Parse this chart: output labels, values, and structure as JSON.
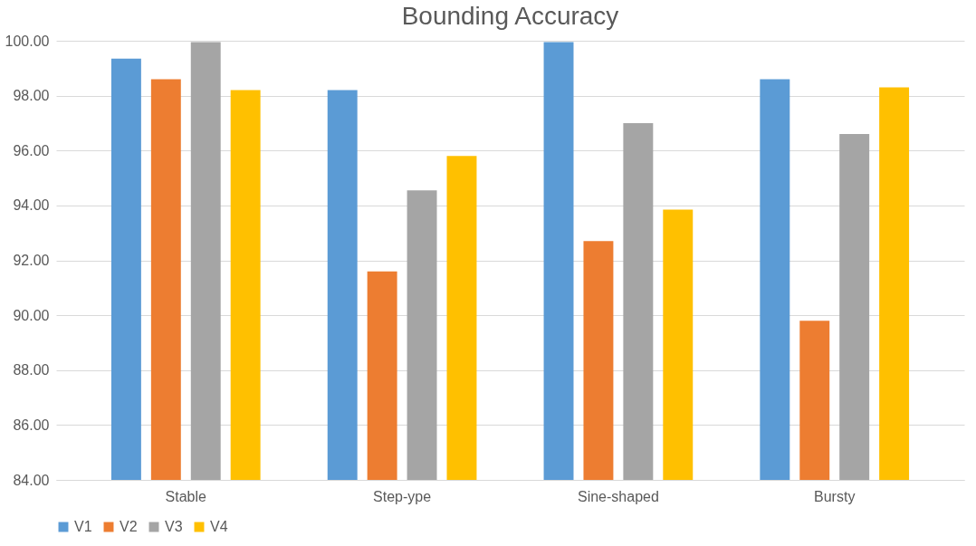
{
  "chart_data": {
    "type": "bar",
    "title": "Bounding Accuracy",
    "categories": [
      "Stable",
      "Step-ype",
      "Sine-shaped",
      "Bursty"
    ],
    "series": [
      {
        "name": "V1",
        "color": "#5b9bd5",
        "values": [
          99.35,
          98.2,
          99.95,
          98.6
        ]
      },
      {
        "name": "V2",
        "color": "#ed7d31",
        "values": [
          98.6,
          91.6,
          92.7,
          89.8
        ]
      },
      {
        "name": "V3",
        "color": "#a5a5a5",
        "values": [
          99.95,
          94.55,
          97.0,
          96.6
        ]
      },
      {
        "name": "V4",
        "color": "#ffc000",
        "values": [
          98.2,
          95.8,
          93.85,
          98.3
        ]
      }
    ],
    "ylim": [
      84,
      100
    ],
    "yticks": [
      {
        "value": 84,
        "label": "84.00"
      },
      {
        "value": 86,
        "label": "86.00"
      },
      {
        "value": 88,
        "label": "88.00"
      },
      {
        "value": 90,
        "label": "90.00"
      },
      {
        "value": 92,
        "label": "92.00"
      },
      {
        "value": 94,
        "label": "94.00"
      },
      {
        "value": 96,
        "label": "96.00"
      },
      {
        "value": 98,
        "label": "98.00"
      },
      {
        "value": 100,
        "label": "100.00"
      }
    ],
    "grid": "y",
    "legend": "bottom"
  }
}
